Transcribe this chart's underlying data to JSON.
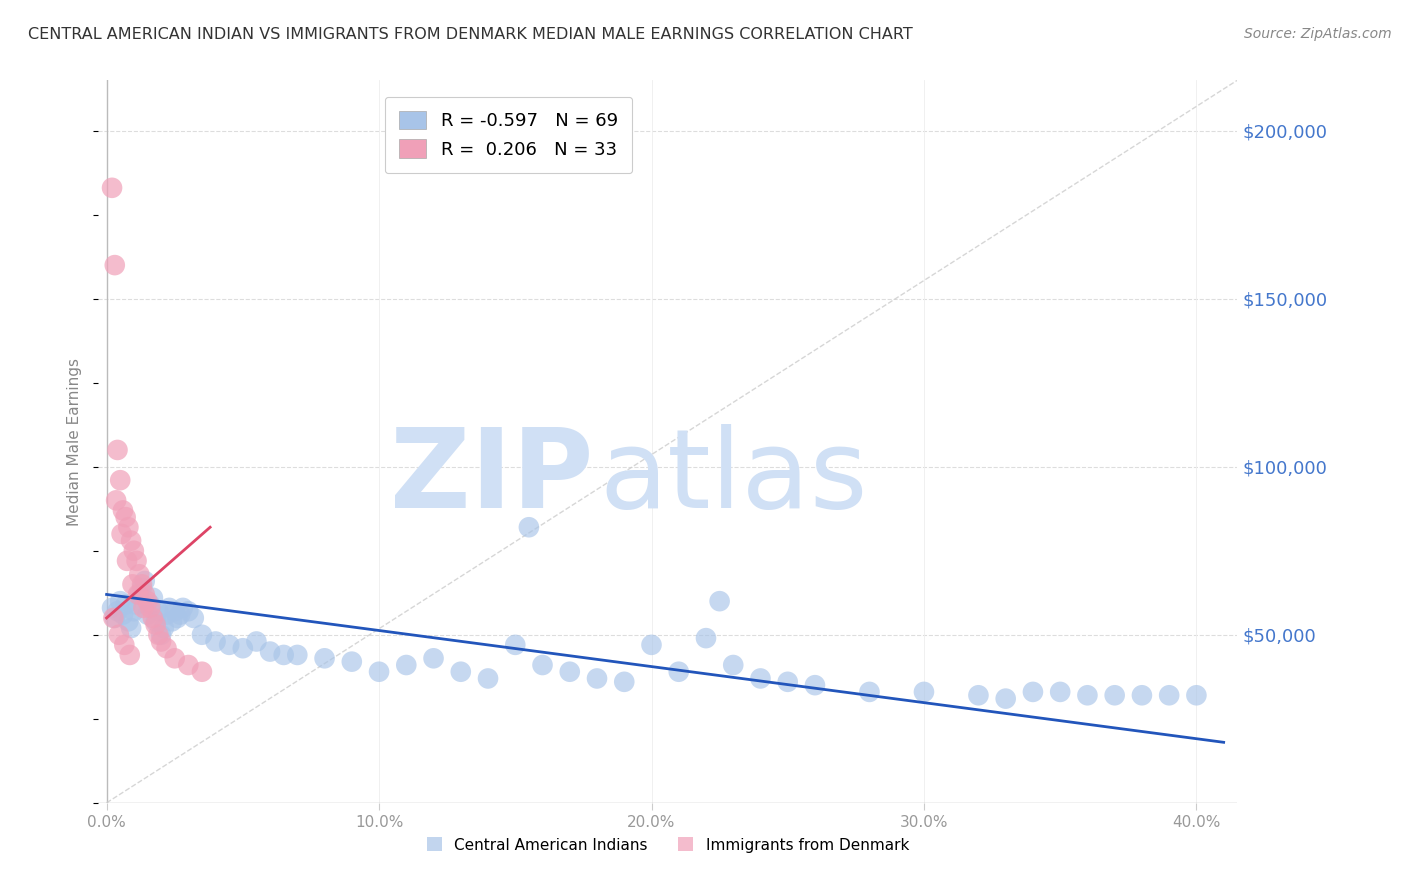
{
  "title": "CENTRAL AMERICAN INDIAN VS IMMIGRANTS FROM DENMARK MEDIAN MALE EARNINGS CORRELATION CHART",
  "source": "Source: ZipAtlas.com",
  "ylabel": "Median Male Earnings",
  "xlabel_ticks": [
    "0.0%",
    "10.0%",
    "20.0%",
    "30.0%",
    "40.0%"
  ],
  "xlabel_values": [
    0.0,
    10.0,
    20.0,
    30.0,
    40.0
  ],
  "ytick_labels": [
    "$50,000",
    "$100,000",
    "$150,000",
    "$200,000"
  ],
  "ytick_values": [
    50000,
    100000,
    150000,
    200000
  ],
  "ylim": [
    0,
    215000
  ],
  "xlim": [
    -0.3,
    41.5
  ],
  "blue_R": "-0.597",
  "blue_N": "69",
  "pink_R": "0.206",
  "pink_N": "33",
  "blue_color": "#a8c4e8",
  "pink_color": "#f0a0b8",
  "blue_line_color": "#2255bb",
  "pink_line_color": "#dd4466",
  "diag_line_color": "#cccccc",
  "legend_label_blue": "Central American Indians",
  "legend_label_pink": "Immigrants from Denmark",
  "watermark_zip": "ZIP",
  "watermark_atlas": "atlas",
  "watermark_color": "#d0e0f5",
  "background_color": "#ffffff",
  "title_color": "#333333",
  "axis_label_color": "#4477cc",
  "blue_x": [
    0.2,
    0.3,
    0.4,
    0.5,
    0.6,
    0.7,
    0.8,
    0.9,
    1.0,
    1.1,
    1.2,
    1.3,
    1.4,
    1.5,
    1.6,
    1.7,
    1.8,
    1.9,
    2.0,
    2.1,
    2.2,
    2.3,
    2.4,
    2.5,
    2.6,
    2.7,
    2.8,
    3.0,
    3.2,
    3.5,
    4.0,
    4.5,
    5.0,
    5.5,
    6.0,
    6.5,
    7.0,
    8.0,
    9.0,
    10.0,
    11.0,
    12.0,
    13.0,
    14.0,
    15.0,
    16.0,
    17.0,
    18.0,
    19.0,
    20.0,
    21.0,
    22.0,
    23.0,
    24.0,
    25.0,
    26.0,
    28.0,
    30.0,
    32.0,
    33.0,
    34.0,
    35.0,
    36.0,
    37.0,
    38.0,
    39.0,
    40.0,
    15.5,
    22.5
  ],
  "blue_y": [
    58000,
    55000,
    57000,
    60000,
    56000,
    59000,
    54000,
    52000,
    57000,
    59000,
    62000,
    64000,
    66000,
    56000,
    59000,
    61000,
    54000,
    57000,
    50000,
    52000,
    56000,
    58000,
    54000,
    57000,
    55000,
    56000,
    58000,
    57000,
    55000,
    50000,
    48000,
    47000,
    46000,
    48000,
    45000,
    44000,
    44000,
    43000,
    42000,
    39000,
    41000,
    43000,
    39000,
    37000,
    47000,
    41000,
    39000,
    37000,
    36000,
    47000,
    39000,
    49000,
    41000,
    37000,
    36000,
    35000,
    33000,
    33000,
    32000,
    31000,
    33000,
    33000,
    32000,
    32000,
    32000,
    32000,
    32000,
    82000,
    60000
  ],
  "pink_x": [
    0.2,
    0.3,
    0.4,
    0.5,
    0.6,
    0.7,
    0.8,
    0.9,
    1.0,
    1.1,
    1.2,
    1.3,
    1.4,
    1.5,
    1.6,
    1.7,
    1.8,
    1.9,
    2.0,
    2.2,
    2.5,
    3.0,
    3.5,
    0.35,
    0.55,
    0.75,
    0.95,
    1.15,
    1.35,
    0.25,
    0.45,
    0.65,
    0.85
  ],
  "pink_y": [
    183000,
    160000,
    105000,
    96000,
    87000,
    85000,
    82000,
    78000,
    75000,
    72000,
    68000,
    65000,
    62000,
    60000,
    58000,
    55000,
    53000,
    50000,
    48000,
    46000,
    43000,
    41000,
    39000,
    90000,
    80000,
    72000,
    65000,
    62000,
    58000,
    55000,
    50000,
    47000,
    44000
  ]
}
